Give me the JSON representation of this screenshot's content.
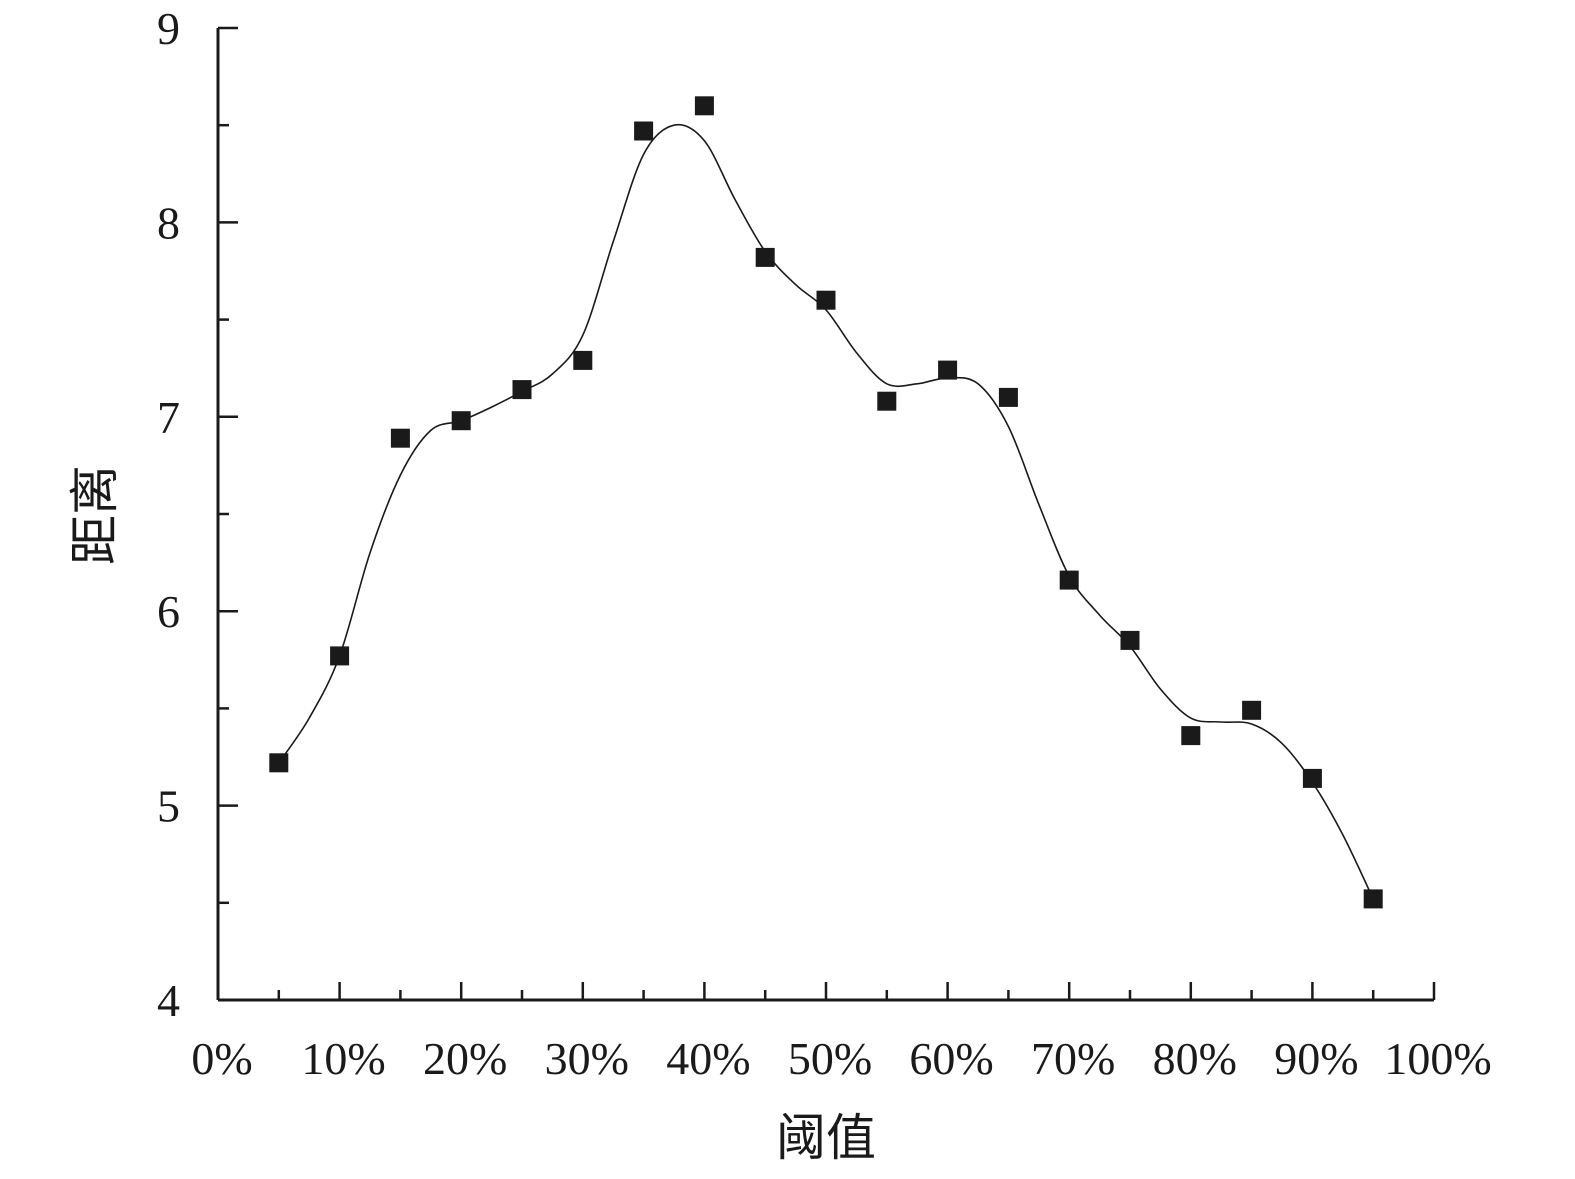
{
  "chart_data": {
    "type": "scatter",
    "xlabel": "阈值",
    "ylabel": "距离",
    "xlim": [
      0,
      100
    ],
    "ylim": [
      4,
      9
    ],
    "x_ticks": [
      0,
      10,
      20,
      30,
      40,
      50,
      60,
      70,
      80,
      90,
      100
    ],
    "x_tick_labels": [
      "0%",
      "10%",
      "20%",
      "30%",
      "40%",
      "50%",
      "60%",
      "70%",
      "80%",
      "90%",
      "100%"
    ],
    "x_minor_ticks": [
      5,
      15,
      25,
      35,
      45,
      55,
      65,
      75,
      85,
      95
    ],
    "y_ticks": [
      4,
      5,
      6,
      7,
      8,
      9
    ],
    "y_tick_labels": [
      "4",
      "5",
      "6",
      "7",
      "8",
      "9"
    ],
    "y_minor_ticks": [
      4.5,
      5.5,
      6.5,
      7.5,
      8.5
    ],
    "grid": false,
    "legend": "none",
    "marker": "square",
    "trend_line": "smooth spline",
    "color": "#1a1a1a",
    "series": [
      {
        "x": [
          5,
          10,
          15,
          20,
          25,
          30,
          35,
          40,
          45,
          50,
          55,
          60,
          65,
          70,
          75,
          80,
          85,
          90,
          95
        ],
        "y": [
          5.22,
          5.77,
          6.89,
          6.98,
          7.14,
          7.29,
          8.47,
          8.6,
          7.82,
          7.6,
          7.08,
          7.24,
          7.1,
          6.16,
          5.85,
          5.36,
          5.49,
          5.14,
          4.52
        ]
      }
    ],
    "curve_points": [
      [
        5,
        5.22
      ],
      [
        7.5,
        5.45
      ],
      [
        10,
        5.77
      ],
      [
        12.5,
        6.3
      ],
      [
        15,
        6.7
      ],
      [
        17.5,
        6.93
      ],
      [
        20,
        6.98
      ],
      [
        22.5,
        7.05
      ],
      [
        25,
        7.13
      ],
      [
        27.5,
        7.22
      ],
      [
        30,
        7.42
      ],
      [
        32.5,
        7.9
      ],
      [
        35,
        8.35
      ],
      [
        37.5,
        8.5
      ],
      [
        40,
        8.42
      ],
      [
        42.5,
        8.12
      ],
      [
        45,
        7.85
      ],
      [
        47.5,
        7.68
      ],
      [
        50,
        7.55
      ],
      [
        52.5,
        7.33
      ],
      [
        55,
        7.17
      ],
      [
        57.5,
        7.17
      ],
      [
        60,
        7.2
      ],
      [
        62.5,
        7.17
      ],
      [
        65,
        6.95
      ],
      [
        67.5,
        6.55
      ],
      [
        70,
        6.18
      ],
      [
        72.5,
        5.98
      ],
      [
        75,
        5.82
      ],
      [
        77.5,
        5.6
      ],
      [
        80,
        5.45
      ],
      [
        82.5,
        5.43
      ],
      [
        85,
        5.42
      ],
      [
        87.5,
        5.32
      ],
      [
        90,
        5.12
      ],
      [
        92.5,
        4.85
      ],
      [
        95,
        4.52
      ]
    ]
  }
}
